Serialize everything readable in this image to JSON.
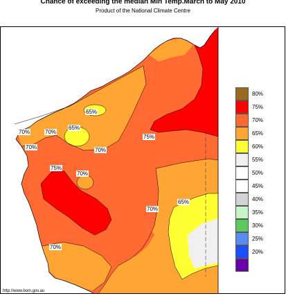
{
  "title": "Chance of exceeding the median Min Temp.March to May 2010",
  "subtitle": "Product of the National Climate Centre",
  "credit": "http://www.bom.gov.au",
  "map_labels": [
    "65%",
    "70%",
    "65%",
    "70%",
    "70%",
    "70%",
    "75%",
    "75%",
    "70%",
    "70%",
    "65%",
    "70%"
  ],
  "legend": [
    {
      "label": "80%",
      "color": "#9c6a1e"
    },
    {
      "label": "75%",
      "color": "#ff0000"
    },
    {
      "label": "70%",
      "color": "#ff6a33"
    },
    {
      "label": "65%",
      "color": "#ffa533"
    },
    {
      "label": "60%",
      "color": "#ffff33"
    },
    {
      "label": "55%",
      "color": "#f0f0f0"
    },
    {
      "label": "50%",
      "color": "#ffffff"
    },
    {
      "label": "45%",
      "color": "#ffffff"
    },
    {
      "label": "40%",
      "color": "#d3d3d3"
    },
    {
      "label": "35%",
      "color": "#c8f5c8"
    },
    {
      "label": "30%",
      "color": "#5dc85d"
    },
    {
      "label": "25%",
      "color": "#5a8cf0"
    },
    {
      "label": "20%",
      "color": "#1a50ff"
    },
    {
      "label": "",
      "color": "#6a00a8"
    }
  ],
  "colors": {
    "p65": "#ffa533",
    "p70": "#ff6a33",
    "p75": "#ff0000",
    "p60": "#ffff33",
    "p55": "#f0f0f0"
  }
}
